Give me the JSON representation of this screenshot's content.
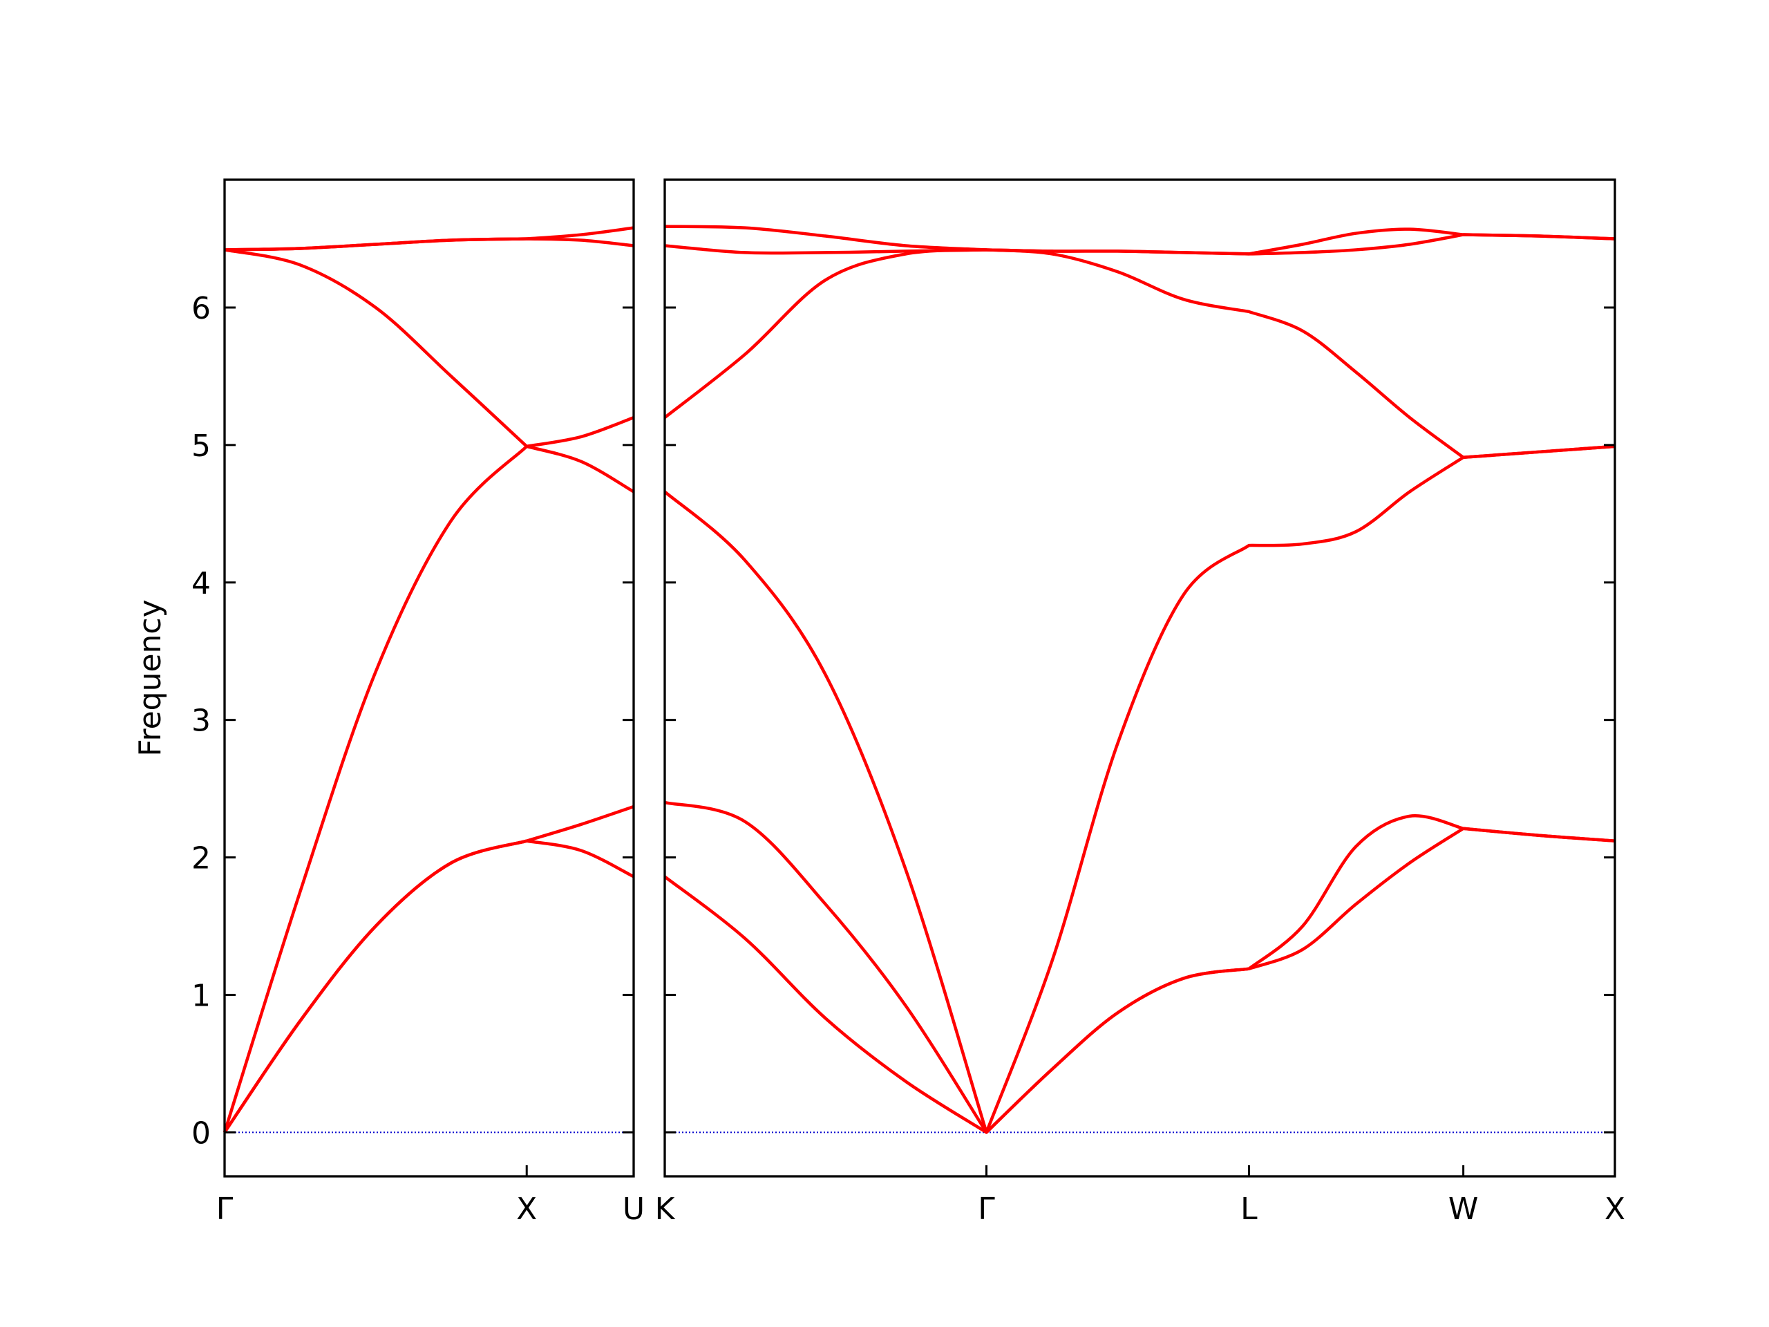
{
  "chart_data": [
    {
      "type": "line",
      "ylabel": "Frequency",
      "color": "#ff0000",
      "x": [
        0,
        0.25,
        0.5,
        0.75,
        1,
        1.18,
        1.354
      ],
      "xlim": [
        0,
        1.354
      ],
      "xticks": [
        {
          "value": 0,
          "label": "Γ"
        },
        {
          "value": 1,
          "label": "X"
        },
        {
          "value": 1.354,
          "label": "U"
        }
      ],
      "ylim": [
        -0.32,
        6.93
      ],
      "yticks": [
        0,
        1,
        2,
        3,
        4,
        5,
        6
      ],
      "ytick_labels": true,
      "hline": 0,
      "hline_color": "#0000cd",
      "series": [
        {
          "values": [
            0,
            0.81,
            1.5,
            1.96,
            2.12,
            2.05,
            1.86
          ]
        },
        {
          "values": [
            0,
            0.81,
            1.5,
            1.96,
            2.12,
            2.24,
            2.37
          ]
        },
        {
          "values": [
            0,
            1.75,
            3.35,
            4.45,
            4.99,
            4.88,
            4.66
          ]
        },
        {
          "values": [
            6.42,
            6.31,
            6.0,
            5.5,
            4.99,
            5.06,
            5.2
          ]
        },
        {
          "values": [
            6.42,
            6.43,
            6.46,
            6.49,
            6.5,
            6.49,
            6.45
          ]
        },
        {
          "values": [
            6.42,
            6.43,
            6.46,
            6.49,
            6.5,
            6.53,
            6.58
          ]
        }
      ]
    },
    {
      "type": "line",
      "color": "#ff0000",
      "x": [
        0,
        0.265,
        0.53,
        0.795,
        1.061,
        1.278,
        1.494,
        1.711,
        1.927,
        2.104,
        2.28,
        2.457,
        2.634,
        2.884,
        3.134
      ],
      "xlim": [
        0,
        3.134
      ],
      "xticks": [
        {
          "value": 0,
          "label": "K"
        },
        {
          "value": 1.061,
          "label": "Γ"
        },
        {
          "value": 1.927,
          "label": "L"
        },
        {
          "value": 2.634,
          "label": "W"
        },
        {
          "value": 3.134,
          "label": "X"
        }
      ],
      "ylim": [
        -0.32,
        6.93
      ],
      "yticks": [
        0,
        1,
        2,
        3,
        4,
        5,
        6
      ],
      "ytick_labels": false,
      "hline": 0,
      "hline_color": "#0000cd",
      "series": [
        {
          "values": [
            1.86,
            1.41,
            0.83,
            0.37,
            0,
            0.46,
            0.87,
            1.12,
            1.19,
            1.33,
            1.66,
            1.96,
            2.21,
            2.16,
            2.12
          ]
        },
        {
          "values": [
            2.4,
            2.26,
            1.66,
            0.92,
            0,
            0.46,
            0.87,
            1.12,
            1.19,
            1.5,
            2.08,
            2.3,
            2.21,
            2.16,
            2.12
          ]
        },
        {
          "values": [
            4.66,
            4.16,
            3.33,
            1.91,
            0,
            1.25,
            2.83,
            3.91,
            4.27,
            4.28,
            4.37,
            4.66,
            4.91,
            4.95,
            4.99
          ]
        },
        {
          "values": [
            5.2,
            5.66,
            6.2,
            6.39,
            6.42,
            6.39,
            6.26,
            6.06,
            5.97,
            5.83,
            5.53,
            5.2,
            4.91,
            4.95,
            4.99
          ]
        },
        {
          "values": [
            6.45,
            6.4,
            6.4,
            6.41,
            6.42,
            6.41,
            6.41,
            6.4,
            6.39,
            6.4,
            6.42,
            6.46,
            6.53,
            6.52,
            6.5
          ]
        },
        {
          "values": [
            6.59,
            6.58,
            6.52,
            6.45,
            6.42,
            6.41,
            6.41,
            6.4,
            6.39,
            6.46,
            6.54,
            6.57,
            6.53,
            6.52,
            6.5
          ]
        }
      ]
    }
  ]
}
